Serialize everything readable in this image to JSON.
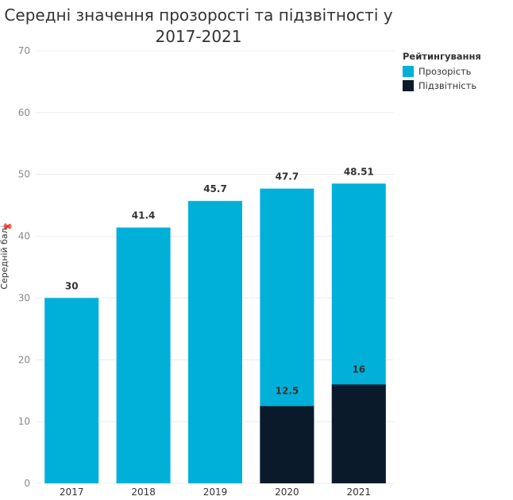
{
  "chart_data": {
    "type": "bar",
    "title": "Середні значення прозорості та підзвітності у 2017-2021",
    "ylabel": "Середній бал",
    "xlabel": "",
    "ylim": [
      0,
      70
    ],
    "yticks": [
      0,
      10,
      20,
      30,
      40,
      50,
      60,
      70
    ],
    "grid": true,
    "legend_title": "Рейтингування",
    "legend_position": "right",
    "categories": [
      "2017",
      "2018",
      "2019",
      "2020",
      "2021"
    ],
    "series": [
      {
        "name": "Прозорість",
        "color": "#00b0d8",
        "values": [
          30,
          41.4,
          45.7,
          47.7,
          48.51
        ],
        "labels": [
          "30",
          "41.4",
          "45.7",
          "47.7",
          "48.51"
        ]
      },
      {
        "name": "Підзвітність",
        "color": "#0b1a2a",
        "values": [
          null,
          null,
          null,
          12.5,
          16
        ],
        "labels": [
          "",
          "",
          "",
          "12.5",
          "16"
        ]
      }
    ]
  }
}
